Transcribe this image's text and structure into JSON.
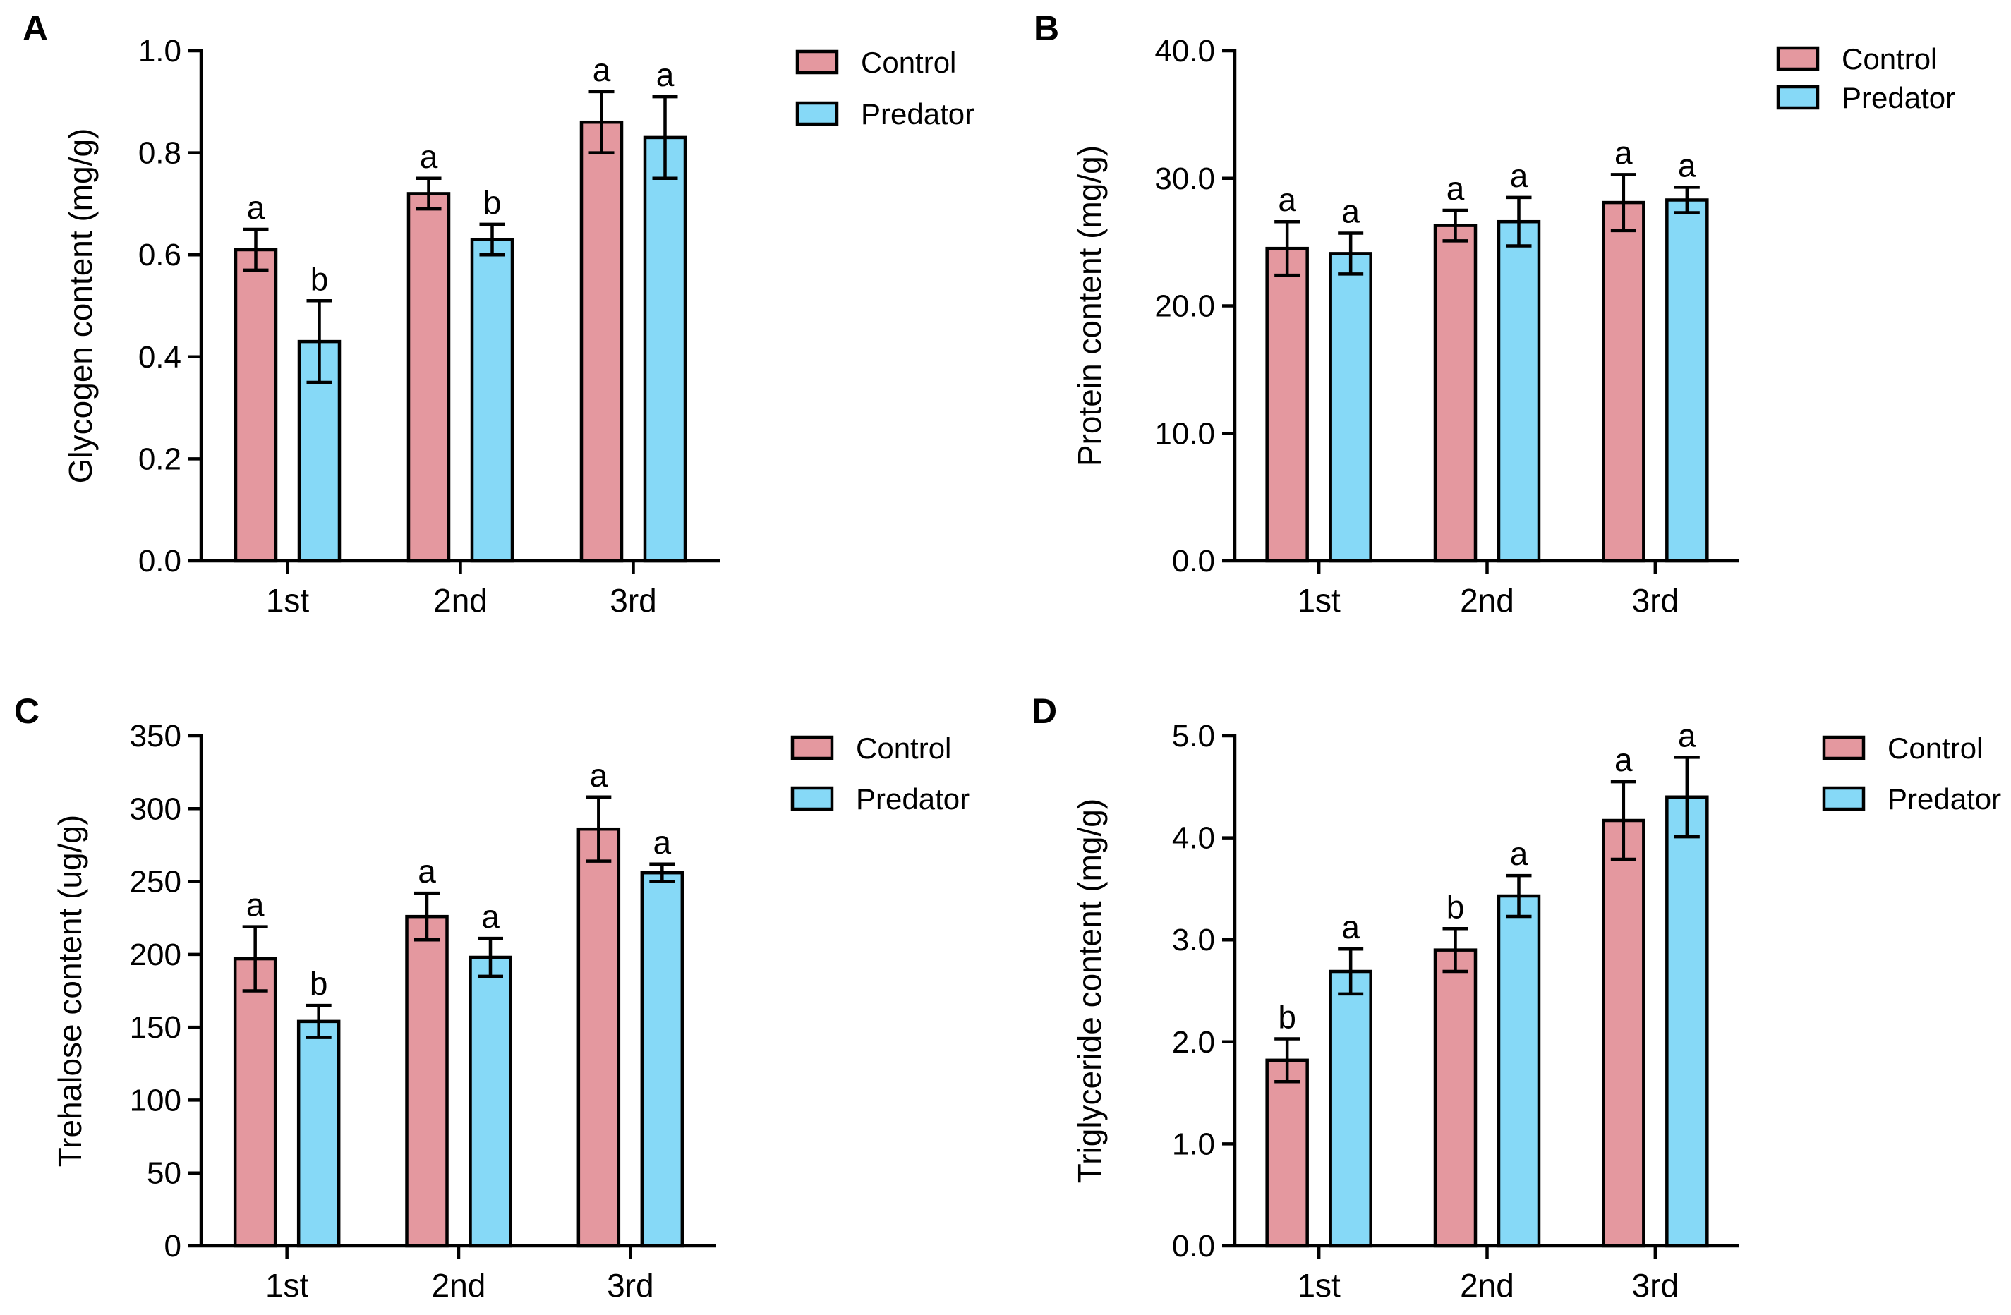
{
  "colors": {
    "control": "#E4989F",
    "predator": "#86D9F7",
    "stroke": "#000000"
  },
  "legend": {
    "control": "Control",
    "predator": "Predator"
  },
  "chart_data": [
    {
      "panel": "A",
      "type": "bar",
      "title": "",
      "ylabel": "Glycogen content (mg/g)",
      "categories": [
        "1st",
        "2nd",
        "3rd"
      ],
      "ylim": [
        0,
        1.0
      ],
      "yticks": [
        0,
        0.2,
        0.4,
        0.6,
        0.8,
        1.0
      ],
      "ytick_labels": [
        "0.0",
        "0.2",
        "0.4",
        "0.6",
        "0.8",
        "1.0"
      ],
      "legend_position": "top-right",
      "series": [
        {
          "name": "Control",
          "values": [
            0.61,
            0.72,
            0.86
          ],
          "errors": [
            0.04,
            0.03,
            0.06
          ],
          "sig": [
            "a",
            "a",
            "a"
          ]
        },
        {
          "name": "Predator",
          "values": [
            0.43,
            0.63,
            0.83
          ],
          "errors": [
            0.08,
            0.03,
            0.08
          ],
          "sig": [
            "b",
            "b",
            "a"
          ]
        }
      ]
    },
    {
      "panel": "B",
      "type": "bar",
      "title": "",
      "ylabel": "Protein content (mg/g)",
      "categories": [
        "1st",
        "2nd",
        "3rd"
      ],
      "ylim": [
        0,
        40
      ],
      "yticks": [
        0,
        10,
        20,
        30,
        40
      ],
      "ytick_labels": [
        "0.0",
        "10.0",
        "20.0",
        "30.0",
        "40.0"
      ],
      "legend_position": "top-right",
      "series": [
        {
          "name": "Control",
          "values": [
            24.5,
            26.3,
            28.1
          ],
          "errors": [
            2.1,
            1.2,
            2.2
          ],
          "sig": [
            "a",
            "a",
            "a"
          ]
        },
        {
          "name": "Predator",
          "values": [
            24.1,
            26.6,
            28.3
          ],
          "errors": [
            1.6,
            1.9,
            1.0
          ],
          "sig": [
            "a",
            "a",
            "a"
          ]
        }
      ]
    },
    {
      "panel": "C",
      "type": "bar",
      "title": "",
      "ylabel": "Trehalose content (ug/g)",
      "categories": [
        "1st",
        "2nd",
        "3rd"
      ],
      "ylim": [
        0,
        350
      ],
      "yticks": [
        0,
        50,
        100,
        150,
        200,
        250,
        300,
        350
      ],
      "ytick_labels": [
        "0",
        "50",
        "100",
        "150",
        "200",
        "250",
        "300",
        "350"
      ],
      "legend_position": "top-right",
      "series": [
        {
          "name": "Control",
          "values": [
            197,
            226,
            286
          ],
          "errors": [
            22,
            16,
            22
          ],
          "sig": [
            "a",
            "a",
            "a"
          ]
        },
        {
          "name": "Predator",
          "values": [
            154,
            198,
            256
          ],
          "errors": [
            11,
            13,
            6
          ],
          "sig": [
            "b",
            "a",
            "a"
          ]
        }
      ]
    },
    {
      "panel": "D",
      "type": "bar",
      "title": "",
      "ylabel": "Triglyceride content (mg/g)",
      "categories": [
        "1st",
        "2nd",
        "3rd"
      ],
      "ylim": [
        0,
        5.0
      ],
      "yticks": [
        0,
        1,
        2,
        3,
        4,
        5
      ],
      "ytick_labels": [
        "0.0",
        "1.0",
        "2.0",
        "3.0",
        "4.0",
        "5.0"
      ],
      "legend_position": "top-right",
      "series": [
        {
          "name": "Control",
          "values": [
            1.82,
            2.9,
            4.17
          ],
          "errors": [
            0.21,
            0.21,
            0.38
          ],
          "sig": [
            "b",
            "b",
            "a"
          ]
        },
        {
          "name": "Predator",
          "values": [
            2.69,
            3.43,
            4.4
          ],
          "errors": [
            0.22,
            0.2,
            0.39
          ],
          "sig": [
            "a",
            "a",
            "a"
          ]
        }
      ]
    }
  ]
}
